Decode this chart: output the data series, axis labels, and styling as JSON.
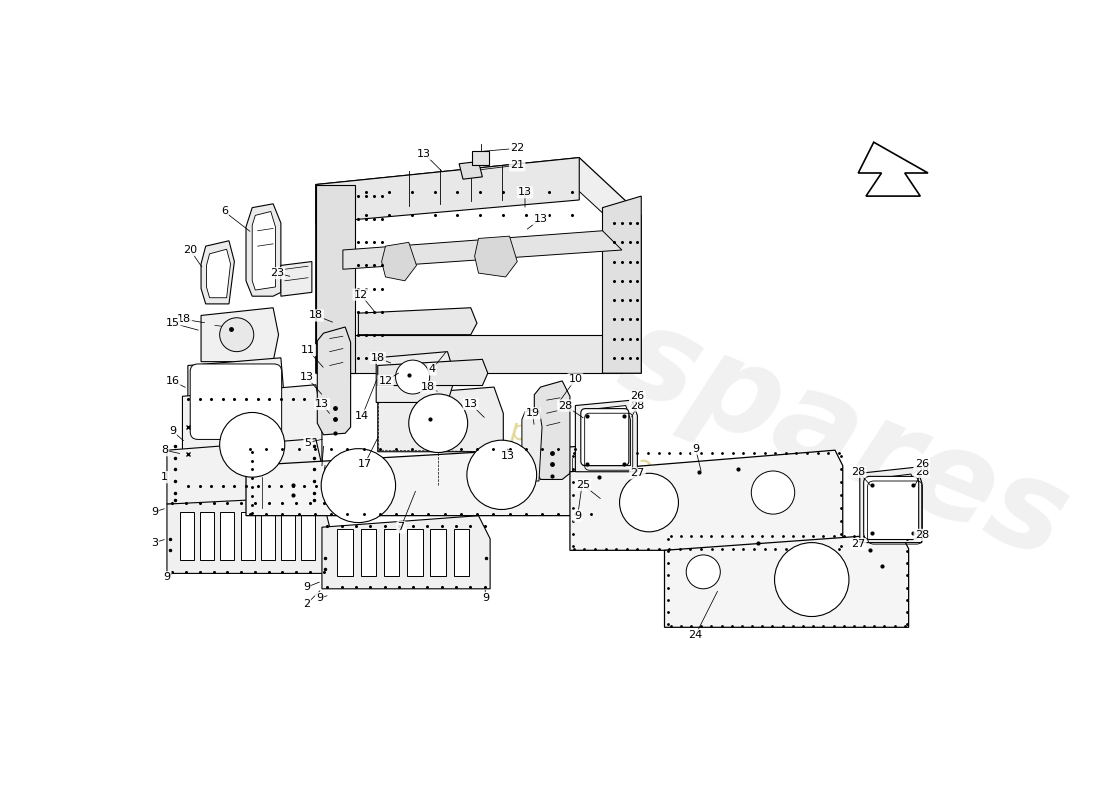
{
  "bg": "#ffffff",
  "lc": "#000000",
  "lw": 0.8,
  "wm_color": "#d0d0d0",
  "wm_text_color": "#c8b840",
  "label_fs": 8
}
